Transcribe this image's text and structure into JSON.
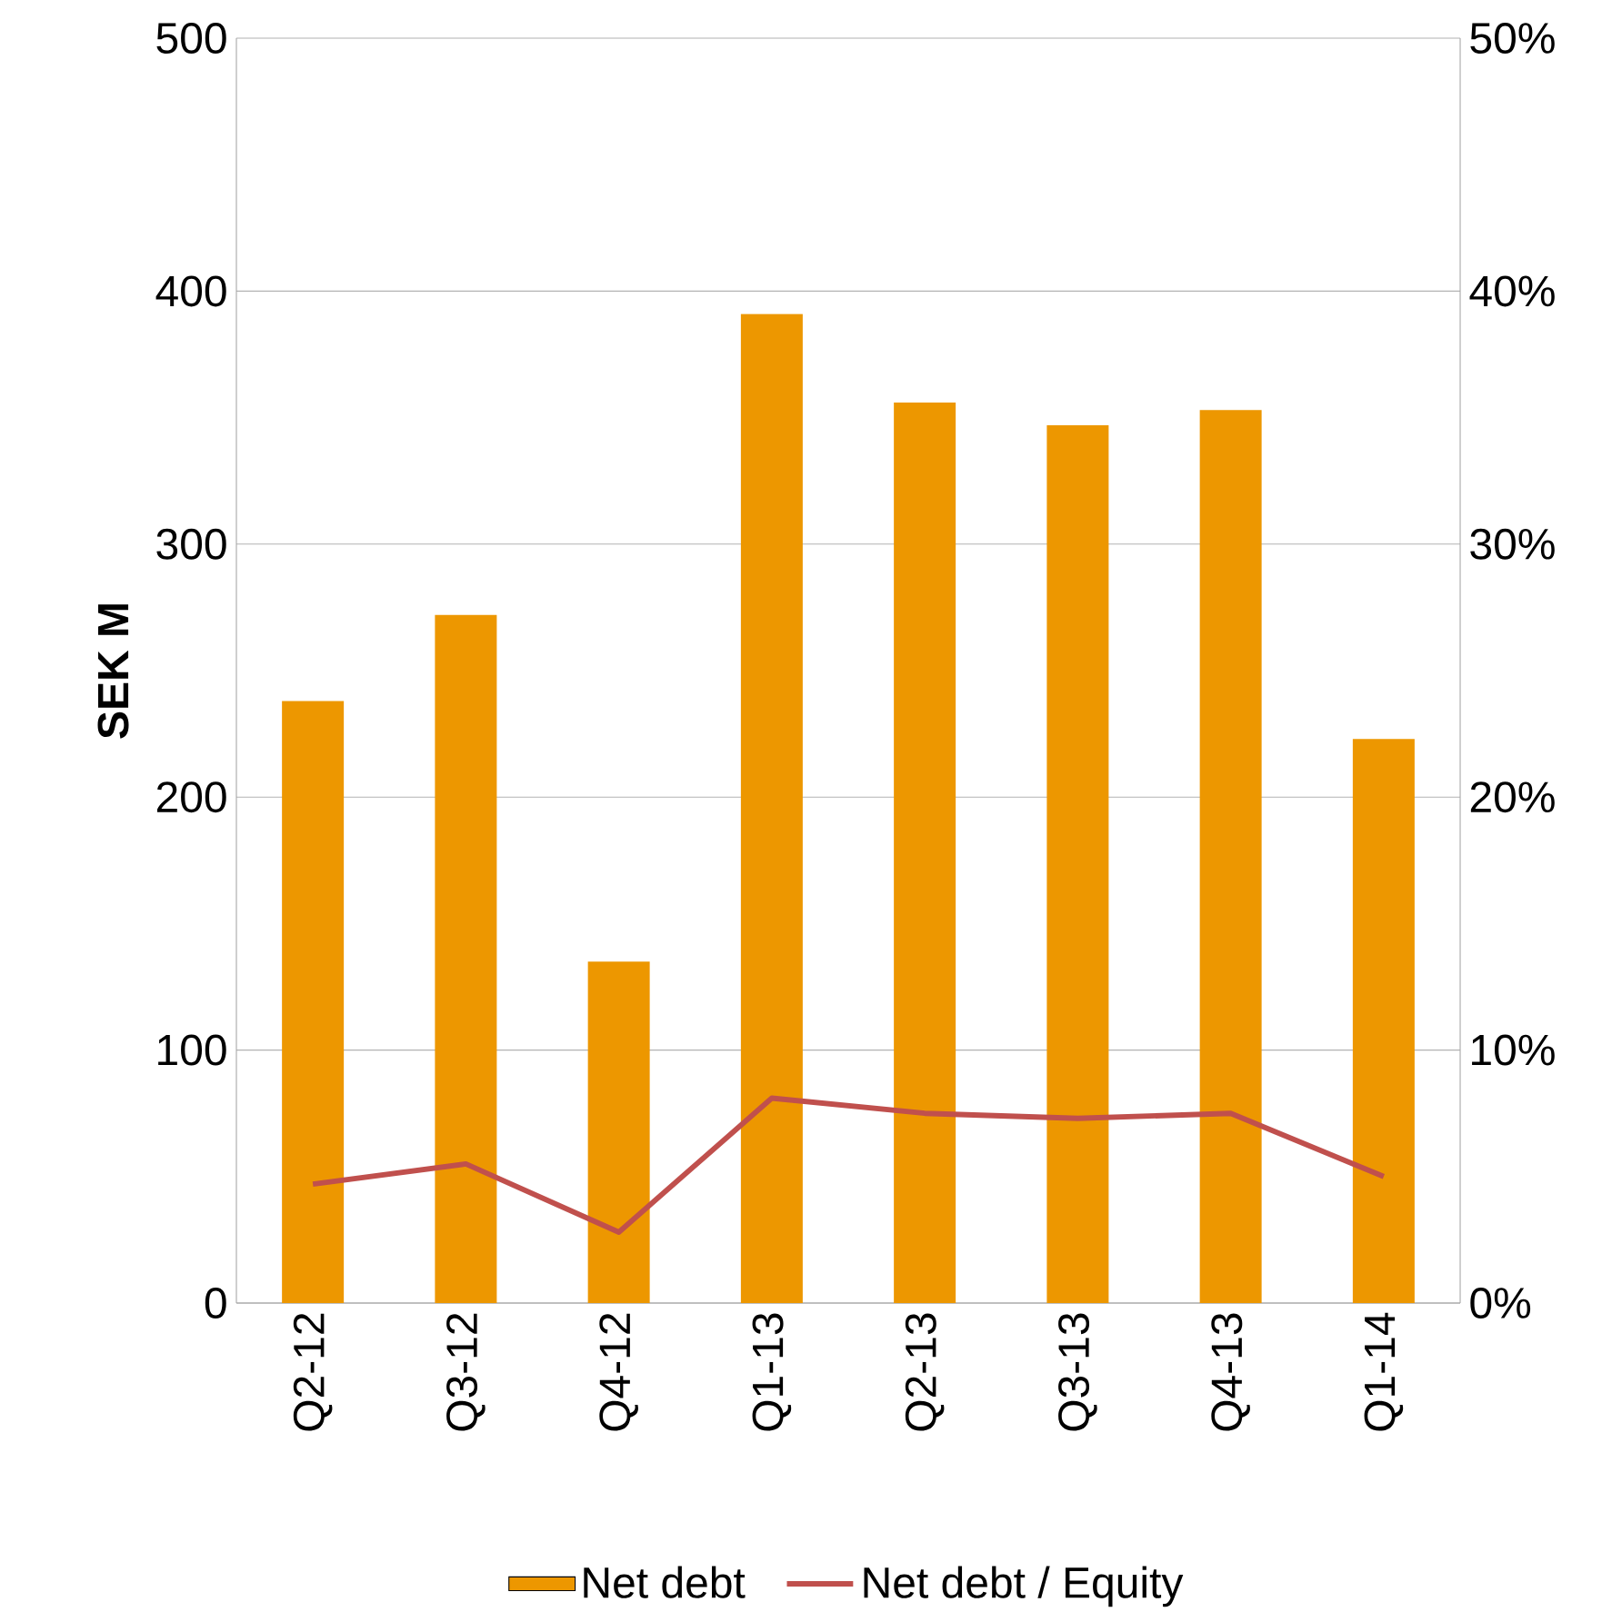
{
  "chart_data": {
    "type": "bar",
    "ylabel": "SEK M",
    "categories": [
      "Q2-12",
      "Q3-12",
      "Q4-12",
      "Q1-13",
      "Q2-13",
      "Q3-13",
      "Q4-13",
      "Q1-14"
    ],
    "series": [
      {
        "name": "Net debt",
        "color": "#ed9700",
        "values": [
          238,
          272,
          135,
          391,
          356,
          347,
          353,
          223
        ]
      },
      {
        "name": "Net debt / Equity",
        "type": "line",
        "axis": "y2",
        "color": "#c0504d",
        "values": [
          4.7,
          5.5,
          2.8,
          8.1,
          7.5,
          7.3,
          7.5,
          5.0
        ]
      }
    ],
    "ylim": [
      0,
      500
    ],
    "yticks": [
      0,
      100,
      200,
      300,
      400,
      500
    ],
    "y2lim": [
      0,
      50
    ],
    "y2ticks": [
      {
        "value": 0,
        "label": "0%"
      },
      {
        "value": 10,
        "label": "10%"
      },
      {
        "value": 20,
        "label": "20%"
      },
      {
        "value": 30,
        "label": "30%"
      },
      {
        "value": 40,
        "label": "40%"
      },
      {
        "value": 50,
        "label": "50%"
      }
    ],
    "grid": "y",
    "legend": "bottom",
    "marker": "none",
    "line_style": "solid"
  }
}
